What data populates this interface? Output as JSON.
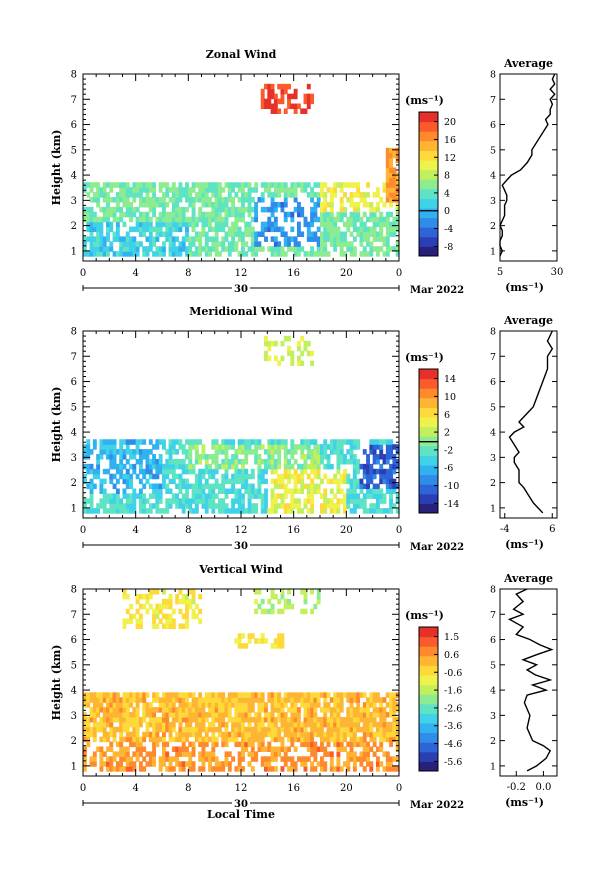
{
  "chart_data": [
    {
      "type": "heatmap",
      "title": "Zonal Wind",
      "ylabel": "Height (km)",
      "yticks": [
        "1",
        "2",
        "3",
        "4",
        "5",
        "6",
        "7",
        "8"
      ],
      "ylim": [
        0.6,
        8.0
      ],
      "xticks": [
        "0",
        "4",
        "8",
        "12",
        "16",
        "20",
        "0"
      ],
      "xlim": [
        0,
        24
      ],
      "date_day": "30",
      "date_month": "Mar 2022",
      "colorbar": {
        "unit": "(ms⁻¹)",
        "ticks": [
          "20",
          "16",
          "12",
          "8",
          "4",
          "0",
          "-4",
          "-8"
        ],
        "range": [
          -10,
          22
        ]
      },
      "regions": [
        {
          "x": [
            0,
            24
          ],
          "y": [
            0.7,
            3.8
          ],
          "value": 5,
          "coverage": 0.75
        },
        {
          "x": [
            0,
            8
          ],
          "y": [
            0.7,
            2.2
          ],
          "value": 2,
          "coverage": 0.7
        },
        {
          "x": [
            13,
            18
          ],
          "y": [
            1.2,
            3.2
          ],
          "value": -2,
          "coverage": 0.5
        },
        {
          "x": [
            18,
            24
          ],
          "y": [
            2.5,
            3.7
          ],
          "value": 10,
          "coverage": 0.5
        },
        {
          "x": [
            23,
            24
          ],
          "y": [
            3.0,
            5.0
          ],
          "value": 16,
          "coverage": 0.9
        },
        {
          "x": [
            13.5,
            17.5
          ],
          "y": [
            6.4,
            7.7
          ],
          "value": 20,
          "coverage": 0.5
        }
      ],
      "average": {
        "title": "Average",
        "xlabel": "(ms⁻¹)",
        "xticks": [
          "5",
          "30"
        ],
        "xlim": [
          5,
          30
        ],
        "heights": [
          0.8,
          1.0,
          1.2,
          1.4,
          1.6,
          1.8,
          2.0,
          2.2,
          2.4,
          2.6,
          2.8,
          3.0,
          3.2,
          3.4,
          3.6,
          3.8,
          4.0,
          4.2,
          4.5,
          4.8,
          5.0,
          6.0,
          6.2,
          6.4,
          6.6,
          6.8,
          7.0,
          7.2,
          7.4,
          7.6,
          7.8,
          8.0
        ],
        "values": [
          5,
          6,
          5,
          5,
          6,
          6,
          5,
          6,
          7,
          7,
          7,
          8,
          8,
          7,
          6,
          8,
          10,
          14,
          17,
          19,
          19,
          26,
          25,
          27,
          27,
          28,
          27,
          29,
          27,
          29,
          28,
          29
        ]
      }
    },
    {
      "type": "heatmap",
      "title": "Meridional Wind",
      "ylabel": "Height (km)",
      "yticks": [
        "1",
        "2",
        "3",
        "4",
        "5",
        "6",
        "7",
        "8"
      ],
      "ylim": [
        0.6,
        8.0
      ],
      "xticks": [
        "0",
        "4",
        "8",
        "12",
        "16",
        "20",
        "0"
      ],
      "xlim": [
        0,
        24
      ],
      "date_day": "30",
      "date_month": "Mar 2022",
      "colorbar": {
        "unit": "(ms⁻¹)",
        "ticks": [
          "14",
          "10",
          "6",
          "2",
          "-2",
          "-6",
          "-10",
          "-14"
        ],
        "range": [
          -16,
          16
        ]
      },
      "regions": [
        {
          "x": [
            0,
            24
          ],
          "y": [
            0.7,
            3.8
          ],
          "value": -3,
          "coverage": 0.7
        },
        {
          "x": [
            0,
            6
          ],
          "y": [
            1.5,
            3.8
          ],
          "value": -6,
          "coverage": 0.6
        },
        {
          "x": [
            8,
            18
          ],
          "y": [
            2.6,
            3.5
          ],
          "value": 0,
          "coverage": 0.7
        },
        {
          "x": [
            14,
            20
          ],
          "y": [
            0.7,
            2.5
          ],
          "value": 4,
          "coverage": 0.6
        },
        {
          "x": [
            21,
            24
          ],
          "y": [
            1.8,
            3.5
          ],
          "value": -11,
          "coverage": 0.7
        },
        {
          "x": [
            13.5,
            17.5
          ],
          "y": [
            6.6,
            7.9
          ],
          "value": 3,
          "coverage": 0.4
        }
      ],
      "average": {
        "title": "Average",
        "xlabel": "(ms⁻¹)",
        "xticks": [
          "-4",
          "6"
        ],
        "xlim": [
          -5,
          7
        ],
        "heights": [
          0.8,
          1.0,
          1.2,
          1.5,
          1.8,
          2.0,
          2.2,
          2.5,
          2.8,
          3.0,
          3.2,
          3.5,
          3.8,
          4.0,
          4.2,
          4.4,
          4.6,
          4.8,
          5.0,
          5.5,
          6.0,
          6.5,
          7.0,
          7.3,
          7.6,
          8.0
        ],
        "values": [
          4,
          3,
          2,
          1,
          0,
          -1,
          -1,
          -1,
          -2,
          -2,
          -1,
          -2,
          -3,
          -2,
          0,
          -1,
          0,
          1,
          2,
          3,
          4,
          5,
          5,
          6,
          5,
          6
        ]
      }
    },
    {
      "type": "heatmap",
      "title": "Vertical Wind",
      "ylabel": "Height (km)",
      "yticks": [
        "1",
        "2",
        "3",
        "4",
        "5",
        "6",
        "7",
        "8"
      ],
      "ylim": [
        0.6,
        8.0
      ],
      "xticks": [
        "0",
        "4",
        "8",
        "12",
        "16",
        "20",
        "0"
      ],
      "xlim": [
        0,
        24
      ],
      "date_day": "30",
      "date_month": "Mar 2022",
      "xlabel": "Local Time",
      "colorbar": {
        "unit": "(ms⁻¹)",
        "ticks": [
          "1.5",
          "0.6",
          "-0.6",
          "-1.6",
          "-2.6",
          "-3.6",
          "-4.6",
          "-5.6"
        ],
        "range": [
          -6.0,
          2.0
        ]
      },
      "regions": [
        {
          "x": [
            0,
            24
          ],
          "y": [
            0.7,
            4.0
          ],
          "value": 0.0,
          "coverage": 0.85
        },
        {
          "x": [
            0,
            24
          ],
          "y": [
            0.7,
            2.0
          ],
          "value": 0.5,
          "coverage": 0.6
        },
        {
          "x": [
            3,
            9
          ],
          "y": [
            6.5,
            8.0
          ],
          "value": -0.8,
          "coverage": 0.45
        },
        {
          "x": [
            13,
            18
          ],
          "y": [
            7.0,
            8.0
          ],
          "value": -1.6,
          "coverage": 0.4
        },
        {
          "x": [
            11.5,
            15.5
          ],
          "y": [
            5.7,
            6.2
          ],
          "value": -0.5,
          "coverage": 0.5
        }
      ],
      "average": {
        "title": "Average",
        "xlabel": "(ms⁻¹)",
        "xticks": [
          "-0.2",
          "0.0"
        ],
        "xlim": [
          -0.32,
          0.1
        ],
        "heights": [
          0.8,
          1.0,
          1.3,
          1.6,
          1.8,
          2.0,
          2.5,
          3.0,
          3.5,
          3.8,
          4.0,
          4.2,
          4.4,
          4.6,
          4.8,
          5.0,
          5.2,
          5.4,
          5.6,
          5.8,
          6.0,
          6.2,
          6.5,
          6.8,
          7.0,
          7.2,
          7.5,
          7.8,
          8.0
        ],
        "values": [
          -0.12,
          -0.05,
          0.02,
          0.05,
          0.0,
          -0.08,
          -0.12,
          -0.1,
          -0.14,
          -0.12,
          0.02,
          -0.08,
          0.05,
          -0.06,
          -0.12,
          -0.05,
          -0.15,
          -0.05,
          0.06,
          -0.03,
          -0.1,
          -0.2,
          -0.15,
          -0.25,
          -0.15,
          -0.22,
          -0.15,
          -0.2,
          -0.12
        ]
      }
    }
  ]
}
